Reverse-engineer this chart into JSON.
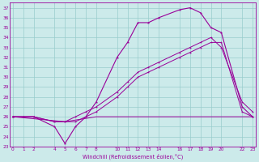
{
  "xlabel": "Windchill (Refroidissement éolien,°C)",
  "bg_color": "#cceaea",
  "line_color": "#990099",
  "grid_color": "#99cccc",
  "x_ticks": [
    0,
    1,
    2,
    4,
    5,
    6,
    7,
    8,
    10,
    11,
    12,
    13,
    14,
    16,
    17,
    18,
    19,
    20,
    22,
    23
  ],
  "ylim": [
    23,
    37.5
  ],
  "xlim": [
    -0.3,
    23.3
  ],
  "y_ticks": [
    23,
    24,
    25,
    26,
    27,
    28,
    29,
    30,
    31,
    32,
    33,
    34,
    35,
    36,
    37
  ],
  "series1_x": [
    0,
    1,
    2,
    4,
    5,
    6,
    7,
    8,
    10,
    11,
    12,
    13,
    14,
    16,
    17,
    18,
    19,
    20,
    22,
    23
  ],
  "series1_y": [
    26.0,
    26.0,
    26.0,
    25.0,
    23.3,
    25.0,
    26.0,
    27.5,
    32.0,
    33.5,
    35.5,
    35.5,
    36.0,
    36.8,
    37.0,
    36.5,
    35.0,
    34.5,
    27.0,
    26.0
  ],
  "series2_x": [
    0,
    1,
    2,
    4,
    5,
    6,
    7,
    8,
    10,
    11,
    12,
    13,
    14,
    16,
    17,
    18,
    19,
    20,
    22,
    23
  ],
  "series2_y": [
    26.0,
    26.0,
    26.0,
    25.5,
    25.5,
    25.5,
    26.0,
    26.5,
    28.0,
    29.0,
    30.0,
    30.5,
    31.0,
    32.0,
    32.5,
    33.0,
    33.5,
    33.5,
    26.5,
    26.0
  ],
  "series3_x": [
    0,
    5,
    8,
    14,
    20,
    23
  ],
  "series3_y": [
    26.0,
    25.5,
    26.0,
    26.0,
    26.0,
    26.0
  ],
  "series4_x": [
    0,
    1,
    2,
    4,
    5,
    6,
    7,
    8,
    10,
    11,
    12,
    13,
    14,
    16,
    17,
    18,
    19,
    20,
    22,
    23
  ],
  "series4_y": [
    26.0,
    26.0,
    26.0,
    25.5,
    25.5,
    26.0,
    26.5,
    27.0,
    28.5,
    29.5,
    30.5,
    31.0,
    31.5,
    32.5,
    33.0,
    33.5,
    34.0,
    33.0,
    27.5,
    26.5
  ]
}
